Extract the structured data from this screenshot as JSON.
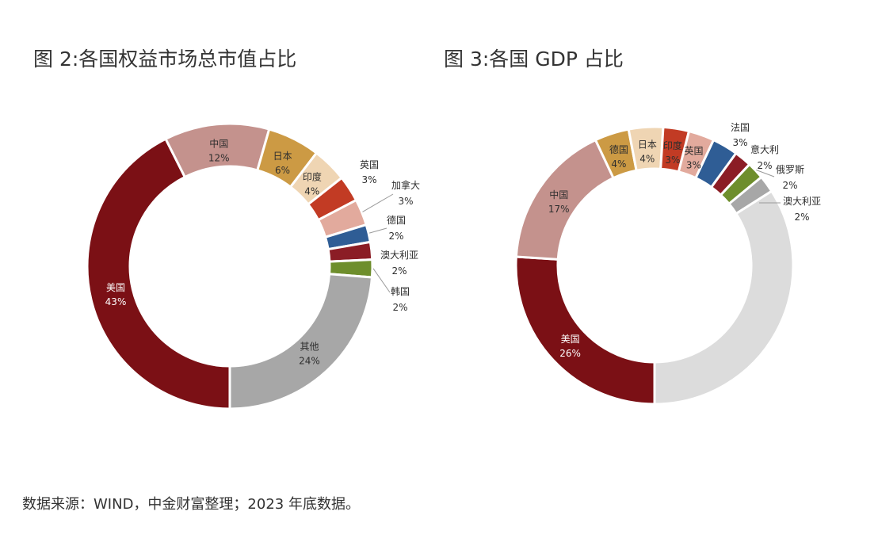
{
  "footer": {
    "source_note": "数据来源：WIND，中金财富整理；2023 年底数据。"
  },
  "chart_data": [
    {
      "type": "pie",
      "donut": true,
      "title": "图 2:各国权益市场总市值占比",
      "slices": [
        {
          "label": "美国",
          "value": 43,
          "value_label": "43%",
          "color": "#7b1015"
        },
        {
          "label": "中国",
          "value": 12,
          "value_label": "12%",
          "color": "#c4928d"
        },
        {
          "label": "日本",
          "value": 6,
          "value_label": "6%",
          "color": "#cc9a44"
        },
        {
          "label": "印度",
          "value": 4,
          "value_label": "4%",
          "color": "#efd5b3"
        },
        {
          "label": "英国",
          "value": 3,
          "value_label": "3%",
          "color": "#c23b24"
        },
        {
          "label": "加拿大",
          "value": 3,
          "value_label": "3%",
          "color": "#e2aa9d"
        },
        {
          "label": "德国",
          "value": 2,
          "value_label": "2%",
          "color": "#2f5d95"
        },
        {
          "label": "澳大利亚",
          "value": 2,
          "value_label": "2%",
          "color": "#8b1d25"
        },
        {
          "label": "韩国",
          "value": 2,
          "value_label": "2%",
          "color": "#6e8e2c"
        },
        {
          "label": "其他",
          "value": 24,
          "value_label": "24%",
          "color": "#a7a7a7"
        }
      ]
    },
    {
      "type": "pie",
      "donut": true,
      "title": "图 3:各国 GDP 占比",
      "slices": [
        {
          "label": "美国",
          "value": 26,
          "value_label": "26%",
          "color": "#7b1015"
        },
        {
          "label": "中国",
          "value": 17,
          "value_label": "17%",
          "color": "#c4928d"
        },
        {
          "label": "德国",
          "value": 4,
          "value_label": "4%",
          "color": "#cc9a44"
        },
        {
          "label": "日本",
          "value": 4,
          "value_label": "4%",
          "color": "#efd5b3"
        },
        {
          "label": "印度",
          "value": 3,
          "value_label": "3%",
          "color": "#c23b24"
        },
        {
          "label": "英国",
          "value": 3,
          "value_label": "3%",
          "color": "#e2aa9d"
        },
        {
          "label": "法国",
          "value": 3,
          "value_label": "3%",
          "color": "#2f5d95"
        },
        {
          "label": "意大利",
          "value": 2,
          "value_label": "2%",
          "color": "#8b1d25"
        },
        {
          "label": "俄罗斯",
          "value": 2,
          "value_label": "2%",
          "color": "#6e8e2c"
        },
        {
          "label": "澳大利亚",
          "value": 2,
          "value_label": "2%",
          "color": "#a7a7a7"
        },
        {
          "value": 34,
          "color": "#dcdcdc"
        }
      ]
    }
  ]
}
